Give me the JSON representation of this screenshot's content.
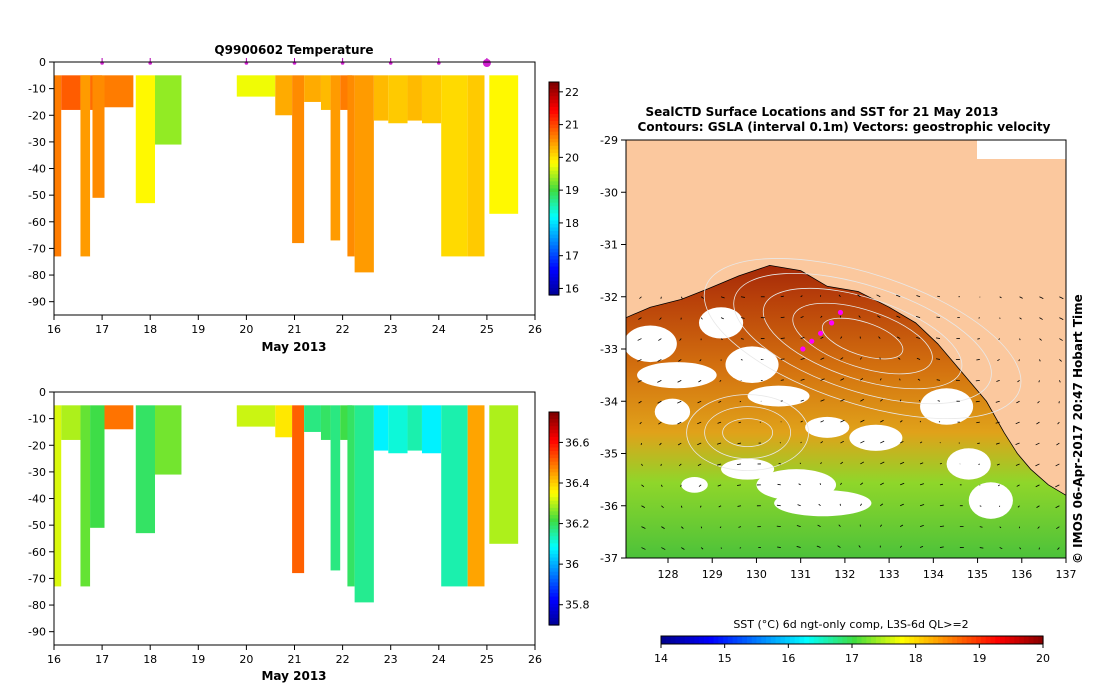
{
  "chart_data": [
    {
      "type": "heatmap",
      "title": "Q9900602  Temperature",
      "xlabel": "May 2013",
      "ylabel": "",
      "xlim": [
        16,
        26
      ],
      "ylim": [
        -95,
        0
      ],
      "x_ticks": [
        16,
        17,
        18,
        19,
        20,
        21,
        22,
        23,
        24,
        25,
        26
      ],
      "y_ticks": [
        0,
        -10,
        -20,
        -30,
        -40,
        -50,
        -60,
        -70,
        -80,
        -90
      ],
      "colorbar": {
        "min": 15.8,
        "max": 22.3,
        "ticks": [
          16,
          17,
          18,
          19,
          20,
          21,
          22
        ]
      },
      "surface_markers": [
        17,
        18,
        20,
        21,
        22,
        23,
        24,
        25
      ],
      "profiles": [
        {
          "x0": 16.0,
          "x1": 16.15,
          "depth": -73,
          "value": 20.7
        },
        {
          "x0": 16.15,
          "x1": 16.55,
          "depth": -18,
          "value": 20.9
        },
        {
          "x0": 16.55,
          "x1": 16.75,
          "depth": -17,
          "value": 20.7
        },
        {
          "x0": 16.55,
          "x1": 16.75,
          "depth": -73,
          "value": 20.5
        },
        {
          "x0": 16.75,
          "x1": 17.0,
          "depth": -18,
          "value": 20.8
        },
        {
          "x0": 16.8,
          "x1": 17.05,
          "depth": -51,
          "value": 20.6
        },
        {
          "x0": 17.05,
          "x1": 17.65,
          "depth": -17,
          "value": 20.7
        },
        {
          "x0": 17.7,
          "x1": 18.1,
          "depth": -53,
          "value": 19.9
        },
        {
          "x0": 18.1,
          "x1": 18.65,
          "depth": -31,
          "value": 19.4
        },
        {
          "x0": 19.8,
          "x1": 20.6,
          "depth": -13,
          "value": 19.8
        },
        {
          "x0": 20.6,
          "x1": 20.95,
          "depth": -20,
          "value": 20.4
        },
        {
          "x0": 20.95,
          "x1": 21.2,
          "depth": -68,
          "value": 20.6
        },
        {
          "x0": 21.2,
          "x1": 21.55,
          "depth": -15,
          "value": 20.4
        },
        {
          "x0": 21.55,
          "x1": 21.75,
          "depth": -18,
          "value": 20.3
        },
        {
          "x0": 21.75,
          "x1": 21.95,
          "depth": -67,
          "value": 20.5
        },
        {
          "x0": 21.95,
          "x1": 22.2,
          "depth": -18,
          "value": 20.7
        },
        {
          "x0": 22.1,
          "x1": 22.25,
          "depth": -73,
          "value": 20.6
        },
        {
          "x0": 22.25,
          "x1": 22.65,
          "depth": -79,
          "value": 20.5
        },
        {
          "x0": 22.65,
          "x1": 22.95,
          "depth": -22,
          "value": 20.3
        },
        {
          "x0": 22.95,
          "x1": 23.35,
          "depth": -23,
          "value": 20.2
        },
        {
          "x0": 23.35,
          "x1": 23.65,
          "depth": -22,
          "value": 20.3
        },
        {
          "x0": 23.65,
          "x1": 24.05,
          "depth": -23,
          "value": 20.2
        },
        {
          "x0": 24.05,
          "x1": 24.6,
          "depth": -73,
          "value": 20.1
        },
        {
          "x0": 24.6,
          "x1": 24.95,
          "depth": -73,
          "value": 20.2
        },
        {
          "x0": 25.05,
          "x1": 25.65,
          "depth": -57,
          "value": 19.9
        }
      ]
    },
    {
      "type": "heatmap",
      "title": "",
      "xlabel": "May 2013",
      "ylabel": "",
      "xlim": [
        16,
        26
      ],
      "ylim": [
        -95,
        0
      ],
      "x_ticks": [
        16,
        17,
        18,
        19,
        20,
        21,
        22,
        23,
        24,
        25,
        26
      ],
      "y_ticks": [
        0,
        -10,
        -20,
        -30,
        -40,
        -50,
        -60,
        -70,
        -80,
        -90
      ],
      "colorbar": {
        "min": 35.7,
        "max": 36.75,
        "ticks": [
          35.8,
          36,
          36.2,
          36.4,
          36.6
        ]
      },
      "profiles": [
        {
          "x0": 16.0,
          "x1": 16.15,
          "depth": -73,
          "value": 36.33
        },
        {
          "x0": 16.15,
          "x1": 16.55,
          "depth": -18,
          "value": 36.3
        },
        {
          "x0": 16.55,
          "x1": 16.75,
          "depth": -73,
          "value": 36.25
        },
        {
          "x0": 16.75,
          "x1": 17.05,
          "depth": -51,
          "value": 36.22
        },
        {
          "x0": 17.05,
          "x1": 17.65,
          "depth": -14,
          "value": 36.5
        },
        {
          "x0": 17.7,
          "x1": 18.1,
          "depth": -53,
          "value": 36.2
        },
        {
          "x0": 18.1,
          "x1": 18.65,
          "depth": -31,
          "value": 36.26
        },
        {
          "x0": 19.8,
          "x1": 20.6,
          "depth": -13,
          "value": 36.32
        },
        {
          "x0": 20.6,
          "x1": 20.95,
          "depth": -17,
          "value": 36.38
        },
        {
          "x0": 20.95,
          "x1": 21.2,
          "depth": -68,
          "value": 36.52
        },
        {
          "x0": 21.2,
          "x1": 21.55,
          "depth": -15,
          "value": 36.18
        },
        {
          "x0": 21.55,
          "x1": 21.75,
          "depth": -18,
          "value": 36.2
        },
        {
          "x0": 21.75,
          "x1": 21.95,
          "depth": -67,
          "value": 36.18
        },
        {
          "x0": 21.95,
          "x1": 22.2,
          "depth": -18,
          "value": 36.22
        },
        {
          "x0": 22.1,
          "x1": 22.25,
          "depth": -73,
          "value": 36.2
        },
        {
          "x0": 22.25,
          "x1": 22.65,
          "depth": -79,
          "value": 36.17
        },
        {
          "x0": 22.65,
          "x1": 22.95,
          "depth": -22,
          "value": 36.08
        },
        {
          "x0": 22.95,
          "x1": 23.35,
          "depth": -23,
          "value": 36.12
        },
        {
          "x0": 23.35,
          "x1": 23.65,
          "depth": -22,
          "value": 36.15
        },
        {
          "x0": 23.65,
          "x1": 24.05,
          "depth": -23,
          "value": 36.08
        },
        {
          "x0": 24.05,
          "x1": 24.6,
          "depth": -73,
          "value": 36.15
        },
        {
          "x0": 24.6,
          "x1": 24.95,
          "depth": -73,
          "value": 36.45
        },
        {
          "x0": 25.05,
          "x1": 25.65,
          "depth": -57,
          "value": 36.3
        }
      ]
    },
    {
      "type": "heatmap",
      "title": "SealCTD Surface Locations and SST for 21 May 2013",
      "subtitle": "Contours: GSLA (interval 0.1m) Vectors: geostrophic velocity",
      "xlabel": "",
      "ylabel": "",
      "xlim": [
        127.05,
        137
      ],
      "ylim": [
        -37,
        -29
      ],
      "x_ticks": [
        128,
        129,
        130,
        131,
        132,
        133,
        134,
        135,
        136,
        137
      ],
      "y_ticks": [
        -29,
        -30,
        -31,
        -32,
        -33,
        -34,
        -35,
        -36,
        -37
      ],
      "colorbar": {
        "label": "SST (°C) 6d ngt-only comp, L3S-6d QL>=2",
        "min": 14,
        "max": 20,
        "ticks": [
          14,
          15,
          16,
          17,
          18,
          19,
          20
        ]
      },
      "seal_track_lon": [
        131.05,
        131.25,
        131.45,
        131.7,
        131.9
      ],
      "seal_track_lat": [
        -33.0,
        -32.85,
        -32.7,
        -32.5,
        -32.3
      ],
      "coastline_lon": [
        127.05,
        127.6,
        128.3,
        128.9,
        129.6,
        130.3,
        131.0,
        131.6,
        132.3,
        133.0,
        133.6,
        134.1,
        134.6,
        135.2,
        135.6,
        135.9,
        136.2,
        136.6,
        137.0
      ],
      "coastline_lat": [
        -32.4,
        -32.2,
        -32.05,
        -31.85,
        -31.6,
        -31.4,
        -31.5,
        -31.8,
        -31.9,
        -32.2,
        -32.5,
        -32.9,
        -33.4,
        -34.0,
        -34.6,
        -35.0,
        -35.3,
        -35.6,
        -35.8
      ]
    }
  ],
  "footer": {
    "stamp": "© IMOS 06-Apr-2017 20:47 Hobart Time"
  }
}
